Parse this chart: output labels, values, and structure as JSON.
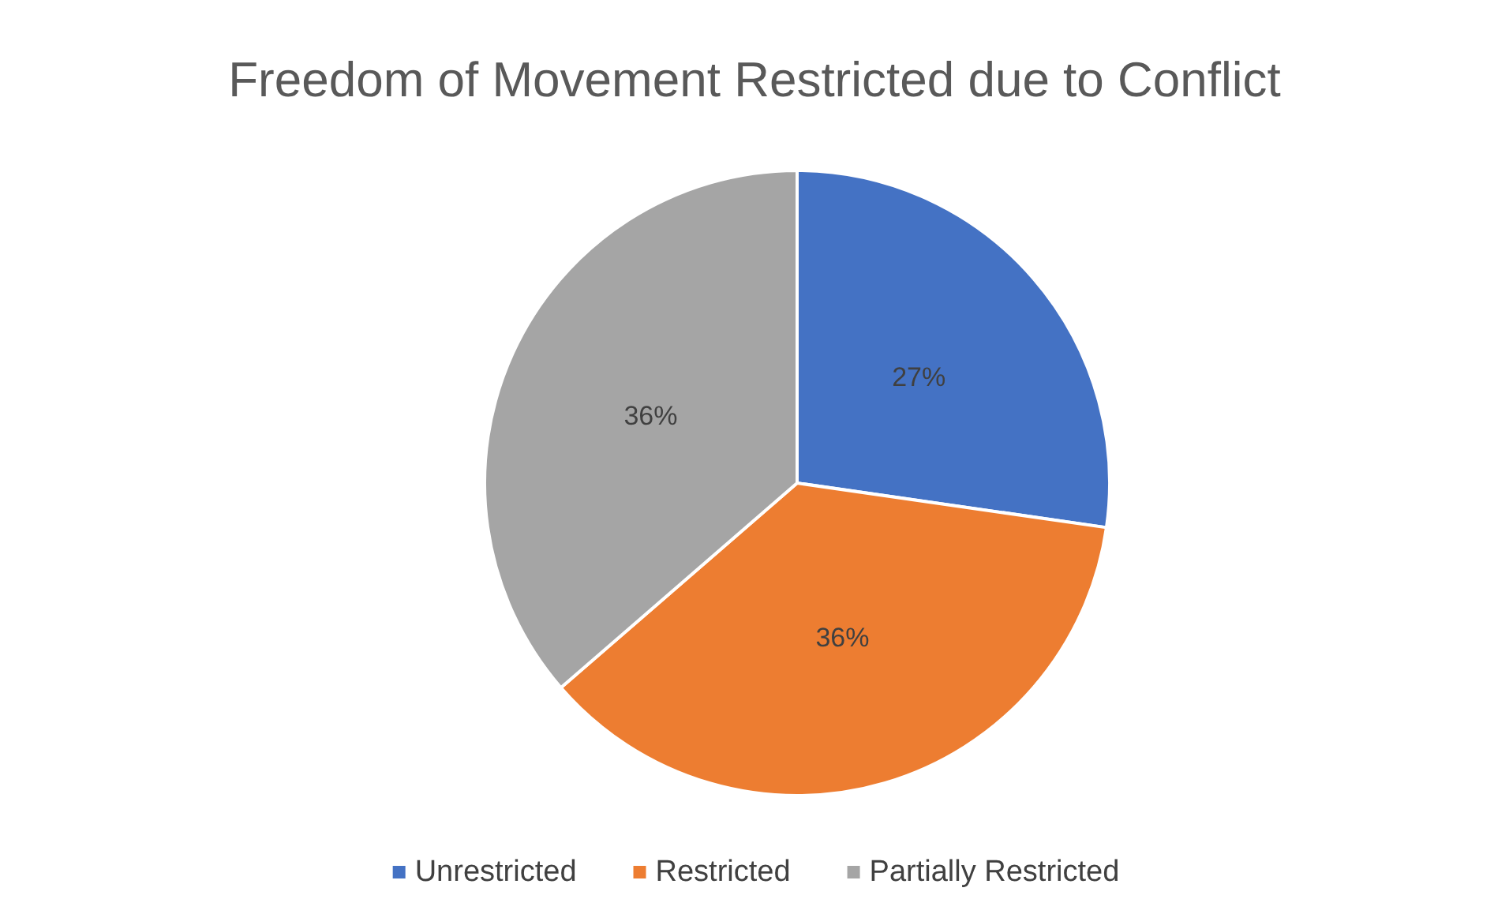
{
  "chart_data": {
    "type": "pie",
    "title": "Freedom of Movement Restricted due to Conflict",
    "categories": [
      "Unrestricted",
      "Restricted",
      "Partially Restricted"
    ],
    "values": [
      27,
      36,
      36
    ],
    "colors": [
      "#4472c4",
      "#ed7d31",
      "#a5a5a5"
    ],
    "value_labels": [
      "27%",
      "36%",
      "36%"
    ],
    "legend": "bottom"
  }
}
